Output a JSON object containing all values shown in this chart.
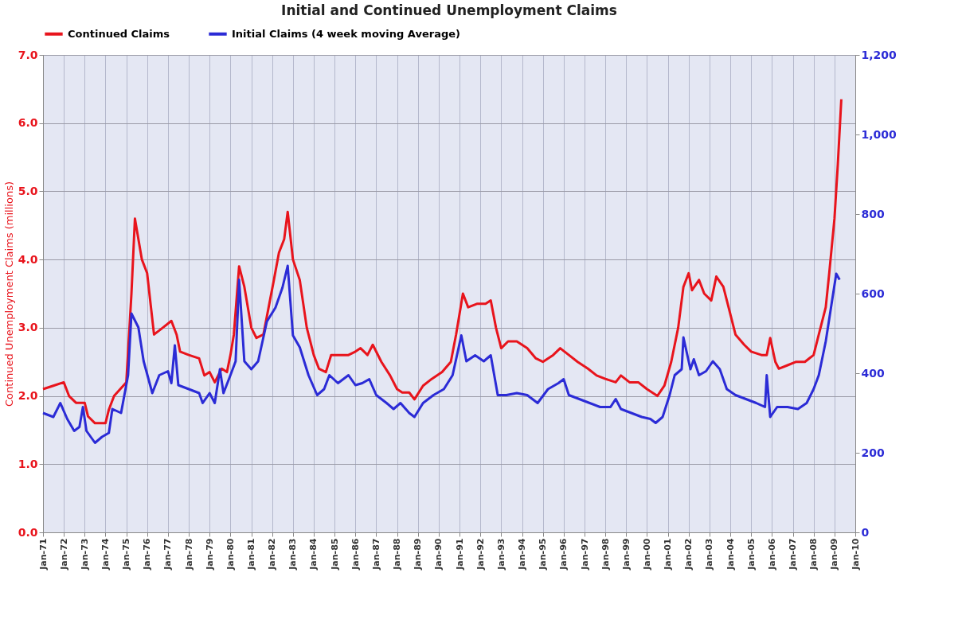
{
  "chart_data": {
    "type": "line",
    "title": "Initial and Continued Unemployment Claims",
    "ylabel": "Continued Unemployment Claims (millions)",
    "xlim": [
      "1971-01",
      "2010-01"
    ],
    "xticks": [
      {
        "value": "1971-01",
        "label": "Jan-71"
      },
      {
        "value": "1972-01",
        "label": "Jan-72"
      },
      {
        "value": "1973-01",
        "label": "Jan-73"
      },
      {
        "value": "1974-01",
        "label": "Jan-74"
      },
      {
        "value": "1975-01",
        "label": "Jan-75"
      },
      {
        "value": "1976-01",
        "label": "Jan-76"
      },
      {
        "value": "1977-01",
        "label": "Jan-77"
      },
      {
        "value": "1978-01",
        "label": "Jan-78"
      },
      {
        "value": "1979-01",
        "label": "Jan-79"
      },
      {
        "value": "1980-01",
        "label": "Jan-80"
      },
      {
        "value": "1981-01",
        "label": "Jan-81"
      },
      {
        "value": "1982-01",
        "label": "Jan-82"
      },
      {
        "value": "1983-01",
        "label": "Jan-83"
      },
      {
        "value": "1984-01",
        "label": "Jan-84"
      },
      {
        "value": "1985-01",
        "label": "Jan-85"
      },
      {
        "value": "1986-01",
        "label": "Jan-86"
      },
      {
        "value": "1987-01",
        "label": "Jan-87"
      },
      {
        "value": "1988-01",
        "label": "Jan-88"
      },
      {
        "value": "1989-01",
        "label": "Jan-89"
      },
      {
        "value": "1990-01",
        "label": "Jan-90"
      },
      {
        "value": "1991-01",
        "label": "Jan-91"
      },
      {
        "value": "1992-01",
        "label": "Jan-92"
      },
      {
        "value": "1993-01",
        "label": "Jan-93"
      },
      {
        "value": "1994-01",
        "label": "Jan-94"
      },
      {
        "value": "1995-01",
        "label": "Jan-95"
      },
      {
        "value": "1996-01",
        "label": "Jan-96"
      },
      {
        "value": "1997-01",
        "label": "Jan-97"
      },
      {
        "value": "1998-01",
        "label": "Jan-98"
      },
      {
        "value": "1999-01",
        "label": "Jan-99"
      },
      {
        "value": "2000-01",
        "label": "Jan-00"
      },
      {
        "value": "2001-01",
        "label": "Jan-01"
      },
      {
        "value": "2002-01",
        "label": "Jan-02"
      },
      {
        "value": "2003-01",
        "label": "Jan-03"
      },
      {
        "value": "2004-01",
        "label": "Jan-04"
      },
      {
        "value": "2005-01",
        "label": "Jan-05"
      },
      {
        "value": "2006-01",
        "label": "Jan-06"
      },
      {
        "value": "2007-01",
        "label": "Jan-07"
      },
      {
        "value": "2008-01",
        "label": "Jan-08"
      },
      {
        "value": "2009-01",
        "label": "Jan-09"
      },
      {
        "value": "2010-01",
        "label": "Jan-10"
      }
    ],
    "ylim": [
      0.0,
      7.0
    ],
    "yticks": [
      {
        "value": 0,
        "label": "0.0"
      },
      {
        "value": 1,
        "label": "1.0"
      },
      {
        "value": 2,
        "label": "2.0"
      },
      {
        "value": 3,
        "label": "3.0"
      },
      {
        "value": 4,
        "label": "4.0"
      },
      {
        "value": 5,
        "label": "5.0"
      },
      {
        "value": 6,
        "label": "6.0"
      },
      {
        "value": 7,
        "label": "7.0"
      }
    ],
    "y2lim": [
      0,
      1200
    ],
    "y2ticks": [
      0,
      200,
      400,
      600,
      800,
      {
        "value": 1000,
        "label": "1,000"
      },
      {
        "value": 1200,
        "label": "1,200"
      }
    ],
    "grid": true,
    "legend": "top",
    "series": [
      {
        "name": "Continued Claims",
        "color": "#e8141c",
        "x": [
          "1971-01",
          "1971-07",
          "1972-01",
          "1972-04",
          "1972-08",
          "1973-01",
          "1973-03",
          "1973-07",
          "1974-01",
          "1974-03",
          "1974-06",
          "1975-01",
          "1975-04",
          "1975-06",
          "1975-10",
          "1976-01",
          "1976-05",
          "1976-10",
          "1977-03",
          "1977-06",
          "1977-08",
          "1978-01",
          "1978-07",
          "1978-10",
          "1979-01",
          "1979-04",
          "1979-08",
          "1979-11",
          "1980-01",
          "1980-03",
          "1980-06",
          "1980-09",
          "1981-01",
          "1981-04",
          "1981-08",
          "1981-11",
          "1982-02",
          "1982-05",
          "1982-08",
          "1982-10",
          "1983-01",
          "1983-05",
          "1983-09",
          "1984-01",
          "1984-04",
          "1984-08",
          "1984-11",
          "1985-04",
          "1985-09",
          "1986-01",
          "1986-04",
          "1986-08",
          "1986-11",
          "1987-04",
          "1987-09",
          "1988-01",
          "1988-04",
          "1988-08",
          "1988-11",
          "1989-04",
          "1989-09",
          "1990-03",
          "1990-08",
          "1990-11",
          "1991-03",
          "1991-06",
          "1991-11",
          "1992-04",
          "1992-07",
          "1992-10",
          "1993-01",
          "1993-05",
          "1993-10",
          "1994-04",
          "1994-09",
          "1995-01",
          "1995-07",
          "1995-11",
          "1996-04",
          "1996-09",
          "1997-03",
          "1997-08",
          "1998-01",
          "1998-07",
          "1998-10",
          "1999-03",
          "1999-08",
          "2000-01",
          "2000-04",
          "2000-07",
          "2000-11",
          "2001-03",
          "2001-07",
          "2001-10",
          "2002-01",
          "2002-03",
          "2002-07",
          "2002-10",
          "2003-02",
          "2003-05",
          "2003-09",
          "2004-01",
          "2004-04",
          "2004-09",
          "2005-01",
          "2005-07",
          "2005-10",
          "2005-12",
          "2006-03",
          "2006-05",
          "2006-10",
          "2007-03",
          "2007-08",
          "2008-01",
          "2008-04",
          "2008-08",
          "2008-10",
          "2009-01",
          "2009-03",
          "2009-05"
        ],
        "values": [
          2.1,
          2.15,
          2.2,
          2.0,
          1.9,
          1.9,
          1.7,
          1.6,
          1.6,
          1.8,
          2.0,
          2.2,
          3.5,
          4.6,
          4.0,
          3.8,
          2.9,
          3.0,
          3.1,
          2.9,
          2.65,
          2.6,
          2.55,
          2.3,
          2.35,
          2.2,
          2.4,
          2.35,
          2.6,
          2.9,
          3.9,
          3.6,
          3.0,
          2.85,
          2.9,
          3.3,
          3.7,
          4.1,
          4.3,
          4.7,
          4.0,
          3.7,
          3.0,
          2.6,
          2.4,
          2.35,
          2.6,
          2.6,
          2.6,
          2.65,
          2.7,
          2.6,
          2.75,
          2.5,
          2.3,
          2.1,
          2.05,
          2.05,
          1.95,
          2.15,
          2.25,
          2.35,
          2.5,
          2.9,
          3.5,
          3.3,
          3.35,
          3.35,
          3.4,
          3.0,
          2.7,
          2.8,
          2.8,
          2.7,
          2.55,
          2.5,
          2.6,
          2.7,
          2.6,
          2.5,
          2.4,
          2.3,
          2.25,
          2.2,
          2.3,
          2.2,
          2.2,
          2.1,
          2.05,
          2.0,
          2.15,
          2.5,
          3.0,
          3.6,
          3.8,
          3.55,
          3.7,
          3.5,
          3.4,
          3.75,
          3.6,
          3.2,
          2.9,
          2.75,
          2.65,
          2.6,
          2.6,
          2.85,
          2.5,
          2.4,
          2.45,
          2.5,
          2.5,
          2.6,
          2.9,
          3.3,
          3.8,
          4.6,
          5.4,
          6.35
        ]
      },
      {
        "name": "Initial Claims (4 week moving Average)",
        "color": "#2b2bd6",
        "axis": "y2",
        "x": [
          "1971-01",
          "1971-07",
          "1971-11",
          "1972-03",
          "1972-07",
          "1972-10",
          "1972-12",
          "1973-02",
          "1973-07",
          "1973-11",
          "1974-03",
          "1974-05",
          "1974-10",
          "1975-02",
          "1975-04",
          "1975-08",
          "1975-11",
          "1976-04",
          "1976-08",
          "1977-01",
          "1977-03",
          "1977-05",
          "1977-07",
          "1978-01",
          "1978-07",
          "1978-09",
          "1979-01",
          "1979-04",
          "1979-07",
          "1979-09",
          "1980-01",
          "1980-04",
          "1980-06",
          "1980-09",
          "1981-01",
          "1981-05",
          "1981-10",
          "1982-03",
          "1982-07",
          "1982-10",
          "1983-01",
          "1983-05",
          "1983-10",
          "1984-03",
          "1984-07",
          "1984-10",
          "1985-03",
          "1985-09",
          "1986-01",
          "1986-05",
          "1986-09",
          "1987-01",
          "1987-07",
          "1987-11",
          "1988-03",
          "1988-08",
          "1988-11",
          "1989-04",
          "1989-10",
          "1990-04",
          "1990-09",
          "1991-02",
          "1991-05",
          "1991-10",
          "1992-03",
          "1992-07",
          "1992-11",
          "1993-04",
          "1993-10",
          "1994-04",
          "1994-10",
          "1995-04",
          "1995-10",
          "1996-01",
          "1996-04",
          "1996-10",
          "1997-04",
          "1997-10",
          "1998-04",
          "1998-07",
          "1998-10",
          "1999-04",
          "1999-10",
          "2000-03",
          "2000-06",
          "2000-10",
          "2001-02",
          "2001-05",
          "2001-09",
          "2001-10",
          "2002-02",
          "2002-04",
          "2002-07",
          "2002-11",
          "2003-03",
          "2003-07",
          "2003-11",
          "2004-04",
          "2004-10",
          "2005-04",
          "2005-09",
          "2005-10",
          "2005-12",
          "2006-04",
          "2006-10",
          "2007-04",
          "2007-09",
          "2008-01",
          "2008-04",
          "2008-08",
          "2008-11",
          "2009-02",
          "2009-04"
        ],
        "values": [
          300,
          290,
          325,
          285,
          255,
          265,
          315,
          255,
          225,
          240,
          250,
          310,
          300,
          395,
          550,
          515,
          430,
          350,
          395,
          405,
          375,
          470,
          370,
          360,
          350,
          325,
          350,
          325,
          410,
          350,
          395,
          430,
          635,
          430,
          410,
          430,
          530,
          565,
          615,
          670,
          495,
          465,
          395,
          345,
          360,
          395,
          375,
          395,
          370,
          375,
          385,
          345,
          325,
          310,
          325,
          300,
          290,
          325,
          345,
          360,
          395,
          495,
          430,
          445,
          430,
          445,
          345,
          345,
          350,
          345,
          325,
          360,
          375,
          385,
          345,
          335,
          325,
          315,
          315,
          335,
          310,
          300,
          290,
          285,
          275,
          290,
          345,
          395,
          410,
          490,
          410,
          435,
          395,
          405,
          430,
          410,
          360,
          345,
          335,
          325,
          315,
          395,
          290,
          315,
          315,
          310,
          325,
          360,
          395,
          480,
          565,
          650,
          635
        ]
      }
    ]
  }
}
